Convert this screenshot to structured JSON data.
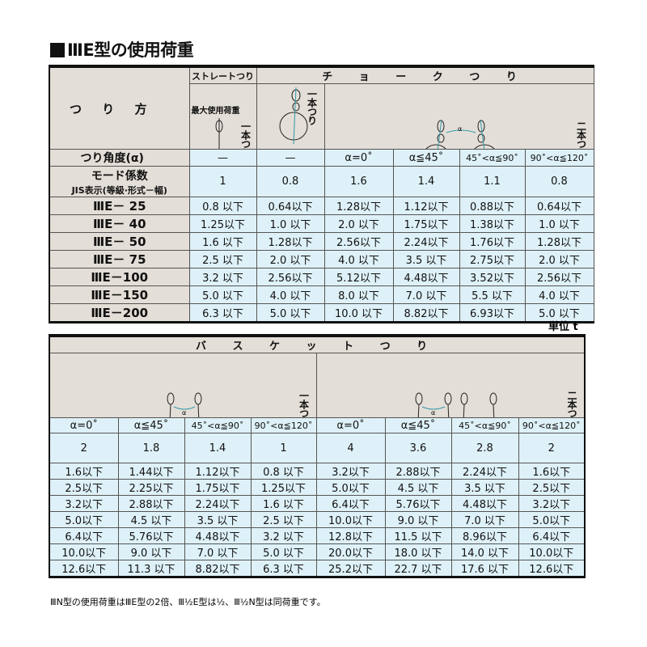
{
  "title": "ⅢE型の使用荷重",
  "table1": {
    "method_label": "つ り 方",
    "straight": "ストレートつり",
    "choke": "チ ョ ー ク つ り",
    "single": "一本つり",
    "double": "二本つり",
    "max_load": "最大使用荷重",
    "angle_label": "つり角度(α)",
    "mode_label": "モード係数",
    "jis_label": "JIS表示(等級·形式－幅)",
    "angles": [
      "—",
      "—",
      "α=0˚",
      "α≦45˚",
      "45˚<α≦90˚",
      "90˚<α≦120˚"
    ],
    "modes": [
      "1",
      "0.8",
      "1.6",
      "1.4",
      "1.1",
      "0.8"
    ],
    "rows": [
      {
        "name": "ⅢE－ 25",
        "v": [
          "0.8 以下",
          "0.64以下",
          "1.28以下",
          "1.12以下",
          "0.88以下",
          "0.64以下"
        ]
      },
      {
        "name": "ⅢE－ 40",
        "v": [
          "1.25以下",
          "1.0 以下",
          "2.0 以下",
          "1.75以下",
          "1.38以下",
          "1.0 以下"
        ]
      },
      {
        "name": "ⅢE－ 50",
        "v": [
          "1.6 以下",
          "1.28以下",
          "2.56以下",
          "2.24以下",
          "1.76以下",
          "1.28以下"
        ]
      },
      {
        "name": "ⅢE－ 75",
        "v": [
          "2.5 以下",
          "2.0 以下",
          "4.0 以下",
          "3.5 以下",
          "2.75以下",
          "2.0 以下"
        ]
      },
      {
        "name": "ⅢE－100",
        "v": [
          "3.2 以下",
          "2.56以下",
          "5.12以下",
          "4.48以下",
          "3.52以下",
          "2.56以下"
        ]
      },
      {
        "name": "ⅢE－150",
        "v": [
          "5.0 以下",
          "4.0 以下",
          "8.0 以下",
          "7.0 以下",
          "5.5 以下",
          "4.0 以下"
        ]
      },
      {
        "name": "ⅢE－200",
        "v": [
          "6.3 以下",
          "5.0 以下",
          "10.0 以下",
          "8.82以下",
          "6.93以下",
          "5.0 以下"
        ]
      }
    ]
  },
  "unit": "単位 t",
  "table2": {
    "basket": "バ ス ケ ッ ト つ り",
    "single": "一本つり",
    "double": "二本つり",
    "angles": [
      "α=0˚",
      "α≦45˚",
      "45˚<α≦90˚",
      "90˚<α≦120˚",
      "α=0˚",
      "α≦45˚",
      "45˚<α≦90˚",
      "90˚<α≦120˚"
    ],
    "modes": [
      "2",
      "1.8",
      "1.4",
      "1",
      "4",
      "3.6",
      "2.8",
      "2"
    ],
    "rows": [
      [
        "1.6以下",
        "1.44以下",
        "1.12以下",
        "0.8 以下",
        "3.2以下",
        "2.88以下",
        "2.24以下",
        "1.6以下"
      ],
      [
        "2.5以下",
        "2.25以下",
        "1.75以下",
        "1.25以下",
        "5.0以下",
        "4.5 以下",
        "3.5 以下",
        "2.5以下"
      ],
      [
        "3.2以下",
        "2.88以下",
        "2.24以下",
        "1.6 以下",
        "6.4以下",
        "5.76以下",
        "4.48以下",
        "3.2以下"
      ],
      [
        "5.0以下",
        "4.5 以下",
        "3.5 以下",
        "2.5 以下",
        "10.0以下",
        "9.0 以下",
        "7.0 以下",
        "5.0以下"
      ],
      [
        "6.4以下",
        "5.76以下",
        "4.48以下",
        "3.2 以下",
        "12.8以下",
        "11.5 以下",
        "8.96以下",
        "6.4以下"
      ],
      [
        "10.0以下",
        "9.0 以下",
        "7.0 以下",
        "5.0 以下",
        "20.0以下",
        "18.0 以下",
        "14.0 以下",
        "10.0以下"
      ],
      [
        "12.6以下",
        "11.3 以下",
        "8.82以下",
        "6.3 以下",
        "25.2以下",
        "22.7 以下",
        "17.6 以下",
        "12.6以下"
      ]
    ]
  },
  "note": "ⅢN型の使用荷重はⅢE型の2倍、Ⅲ½E型は½、Ⅲ½N型は同荷重です。"
}
